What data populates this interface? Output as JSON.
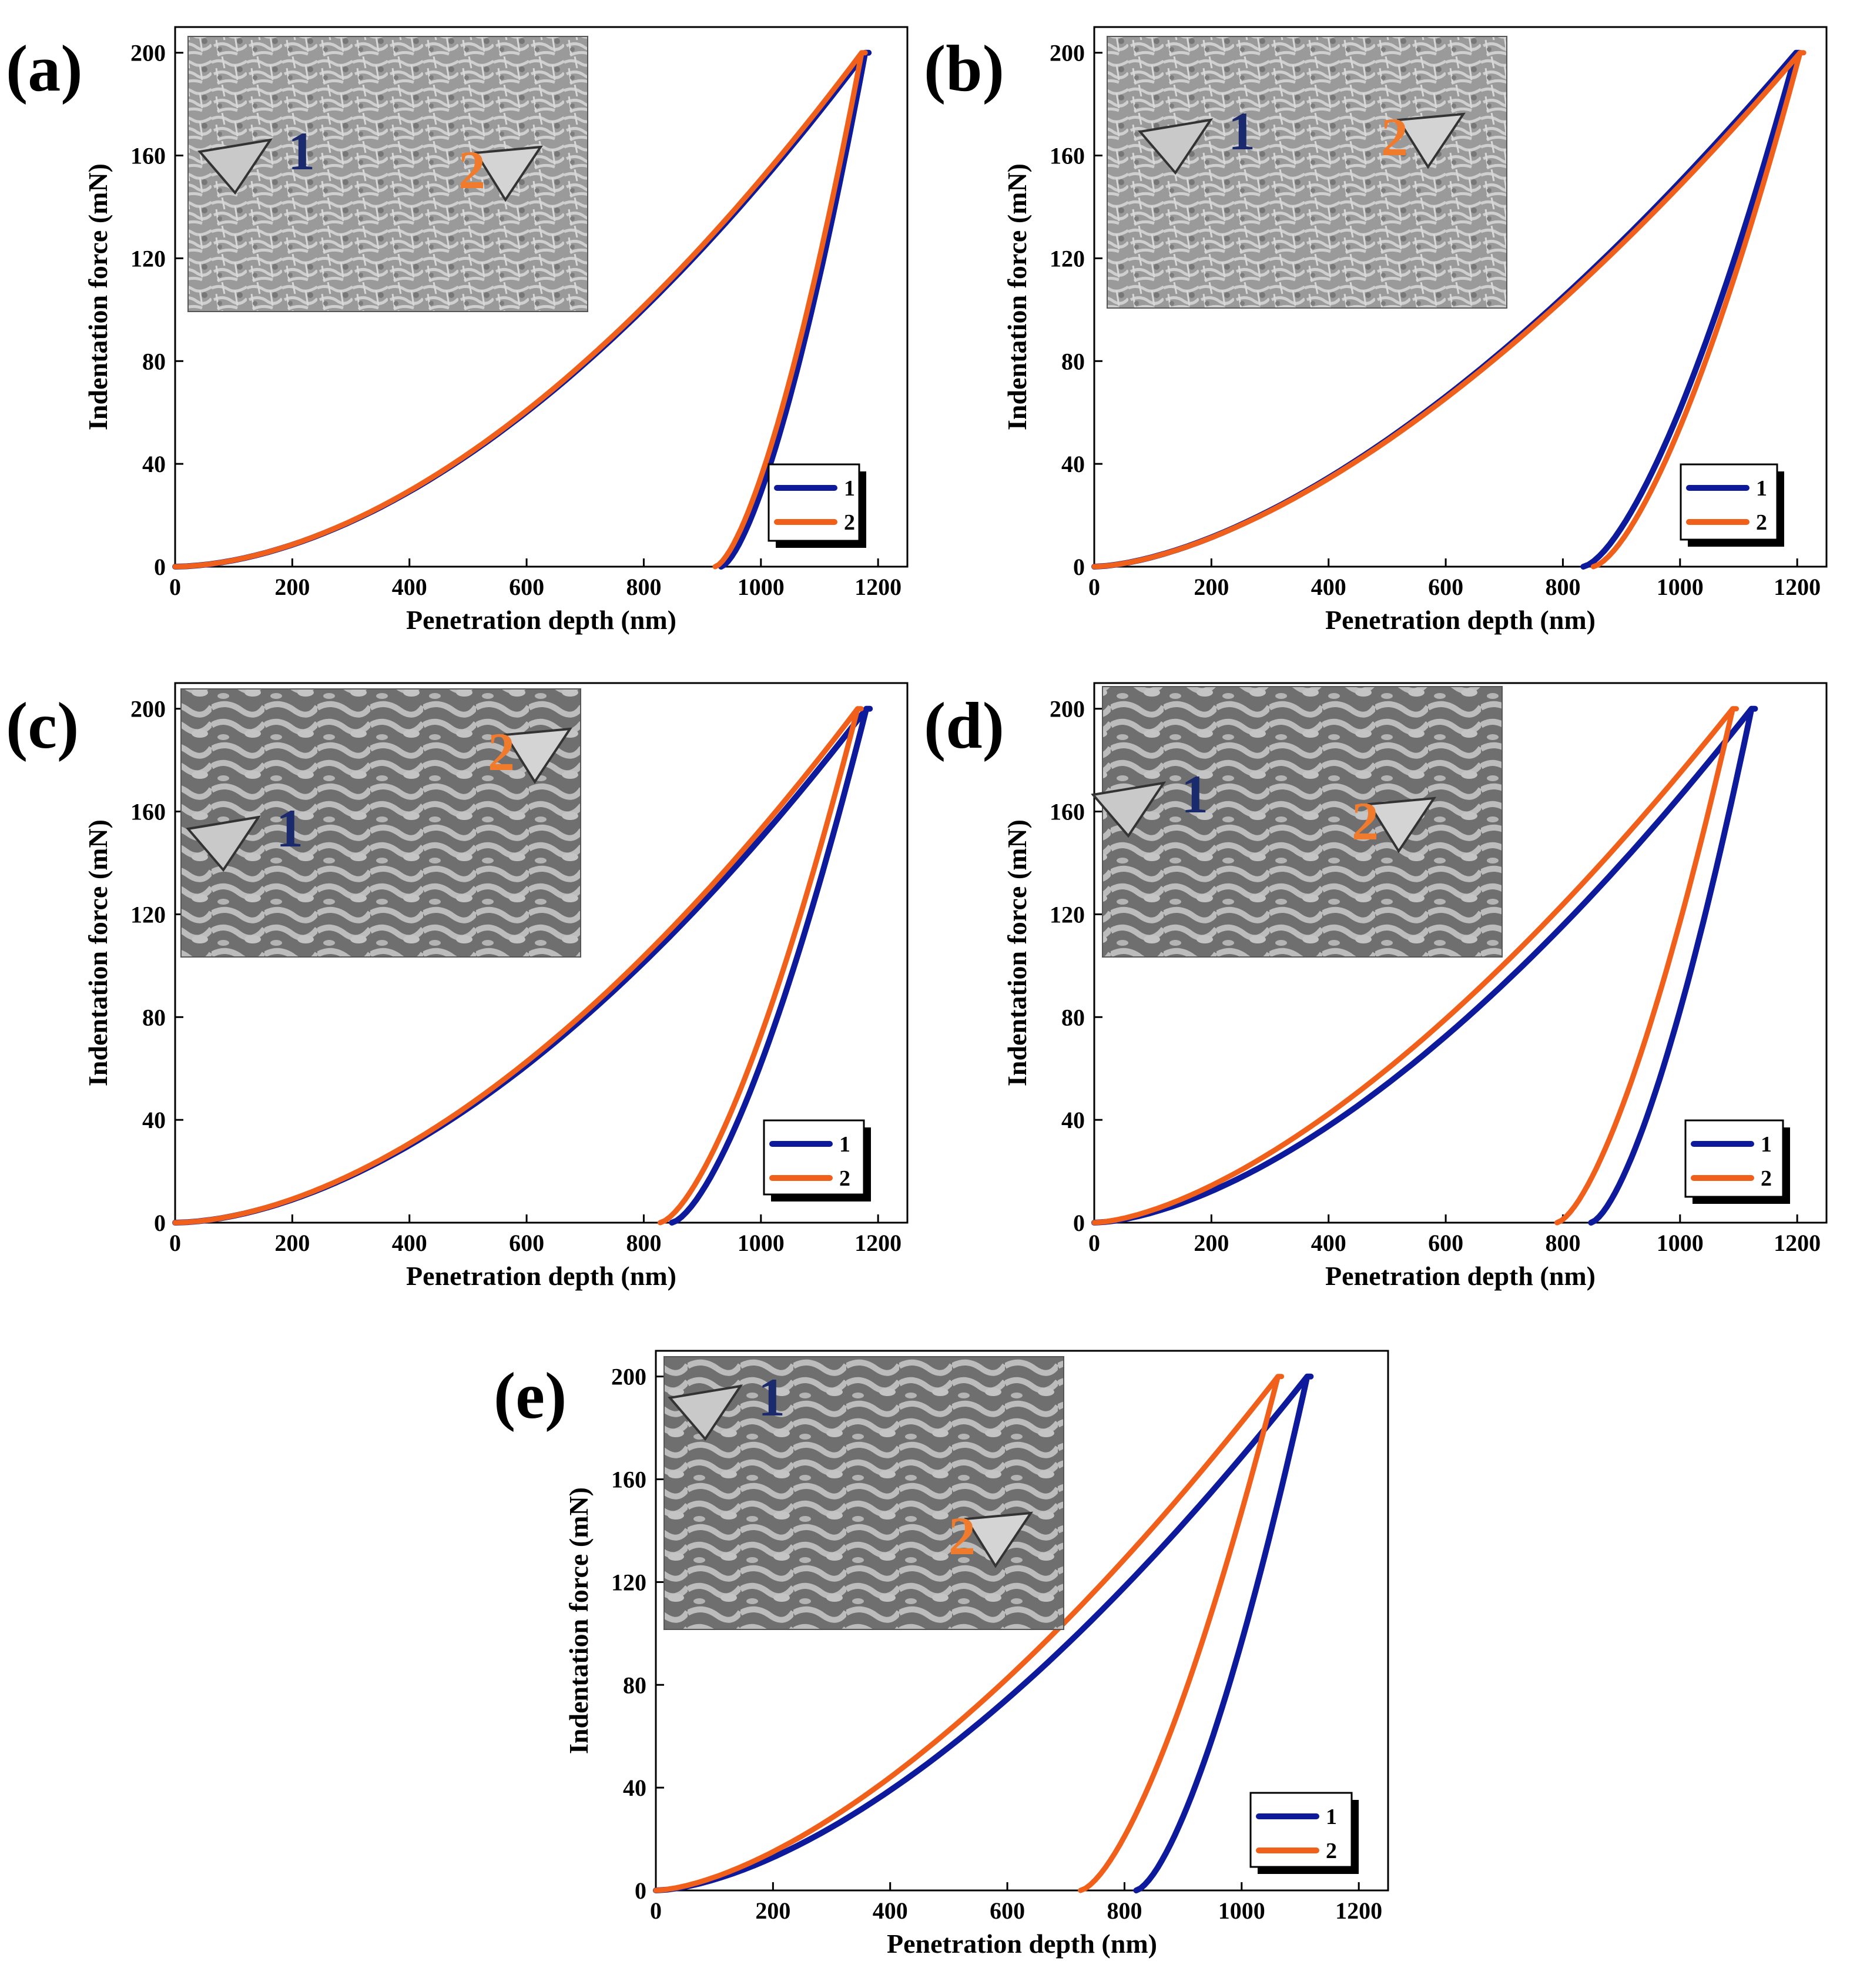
{
  "colors": {
    "series1": "#0d1a9c",
    "series2": "#f0601a",
    "inset_num1": "#1a2a6c",
    "inset_num2": "#f07b2d"
  },
  "chart_data": [
    {
      "panel": "(a)",
      "type": "line",
      "title": "",
      "xlabel": "Penetration depth (nm)",
      "ylabel": "Indentation force (mN)",
      "xlim": [
        0,
        1250
      ],
      "ylim": [
        0,
        210
      ],
      "xticks": [
        0,
        200,
        400,
        600,
        800,
        1000,
        1200
      ],
      "yticks": [
        0,
        40,
        80,
        120,
        160,
        200
      ],
      "legend": [
        "1",
        "2"
      ],
      "legend_position": "bottom-right",
      "inset_labels": [
        "1",
        "2"
      ],
      "series": [
        {
          "name": "1",
          "color": "#0d1a9c",
          "hmax": 1178,
          "hf": 932,
          "load_exp": 1.78
        },
        {
          "name": "2",
          "color": "#f0601a",
          "hmax": 1172,
          "hf": 922,
          "load_exp": 1.78
        }
      ]
    },
    {
      "panel": "(b)",
      "type": "line",
      "title": "",
      "xlabel": "Penetration depth (nm)",
      "ylabel": "Indentation force (mN)",
      "xlim": [
        0,
        1250
      ],
      "ylim": [
        0,
        210
      ],
      "xticks": [
        0,
        200,
        400,
        600,
        800,
        1000,
        1200
      ],
      "yticks": [
        0,
        40,
        80,
        120,
        160,
        200
      ],
      "legend": [
        "1",
        "2"
      ],
      "legend_position": "bottom-right",
      "inset_labels": [
        "1",
        "2"
      ],
      "series": [
        {
          "name": "1",
          "color": "#0d1a9c",
          "hmax": 1198,
          "hf": 835,
          "load_exp": 1.6
        },
        {
          "name": "2",
          "color": "#f0601a",
          "hmax": 1205,
          "hf": 852,
          "load_exp": 1.6
        }
      ]
    },
    {
      "panel": "(c)",
      "type": "line",
      "title": "",
      "xlabel": "Penetration depth (nm)",
      "ylabel": "Indentation force (mN)",
      "xlim": [
        0,
        1250
      ],
      "ylim": [
        0,
        210
      ],
      "xticks": [
        0,
        200,
        400,
        600,
        800,
        1000,
        1200
      ],
      "yticks": [
        0,
        40,
        80,
        120,
        160,
        200
      ],
      "legend": [
        "1",
        "2"
      ],
      "legend_position": "bottom-right",
      "inset_labels": [
        "1",
        "2"
      ],
      "series": [
        {
          "name": "1",
          "color": "#0d1a9c",
          "hmax": 1180,
          "hf": 848,
          "load_exp": 1.75
        },
        {
          "name": "2",
          "color": "#f0601a",
          "hmax": 1165,
          "hf": 828,
          "load_exp": 1.75
        }
      ]
    },
    {
      "panel": "(d)",
      "type": "line",
      "title": "",
      "xlabel": "Penetration depth (nm)",
      "ylabel": "Indentation force (mN)",
      "xlim": [
        0,
        1250
      ],
      "ylim": [
        0,
        210
      ],
      "xticks": [
        0,
        200,
        400,
        600,
        800,
        1000,
        1200
      ],
      "yticks": [
        0,
        40,
        80,
        120,
        160,
        200
      ],
      "legend": [
        "1",
        "2"
      ],
      "legend_position": "bottom-right",
      "inset_labels": [
        "1",
        "2"
      ],
      "series": [
        {
          "name": "1",
          "color": "#0d1a9c",
          "hmax": 1122,
          "hf": 848,
          "load_exp": 1.62
        },
        {
          "name": "2",
          "color": "#f0601a",
          "hmax": 1090,
          "hf": 790,
          "load_exp": 1.55
        }
      ]
    },
    {
      "panel": "(e)",
      "type": "line",
      "title": "",
      "xlabel": "Penetration depth (nm)",
      "ylabel": "Indentation force (mN)",
      "xlim": [
        0,
        1250
      ],
      "ylim": [
        0,
        210
      ],
      "xticks": [
        0,
        200,
        400,
        600,
        800,
        1000,
        1200
      ],
      "yticks": [
        0,
        40,
        80,
        120,
        160,
        200
      ],
      "legend": [
        "1",
        "2"
      ],
      "legend_position": "bottom-right",
      "inset_labels": [
        "1",
        "2"
      ],
      "series": [
        {
          "name": "1",
          "color": "#0d1a9c",
          "hmax": 1112,
          "hf": 820,
          "load_exp": 1.6
        },
        {
          "name": "2",
          "color": "#f0601a",
          "hmax": 1062,
          "hf": 725,
          "load_exp": 1.55
        }
      ]
    }
  ]
}
